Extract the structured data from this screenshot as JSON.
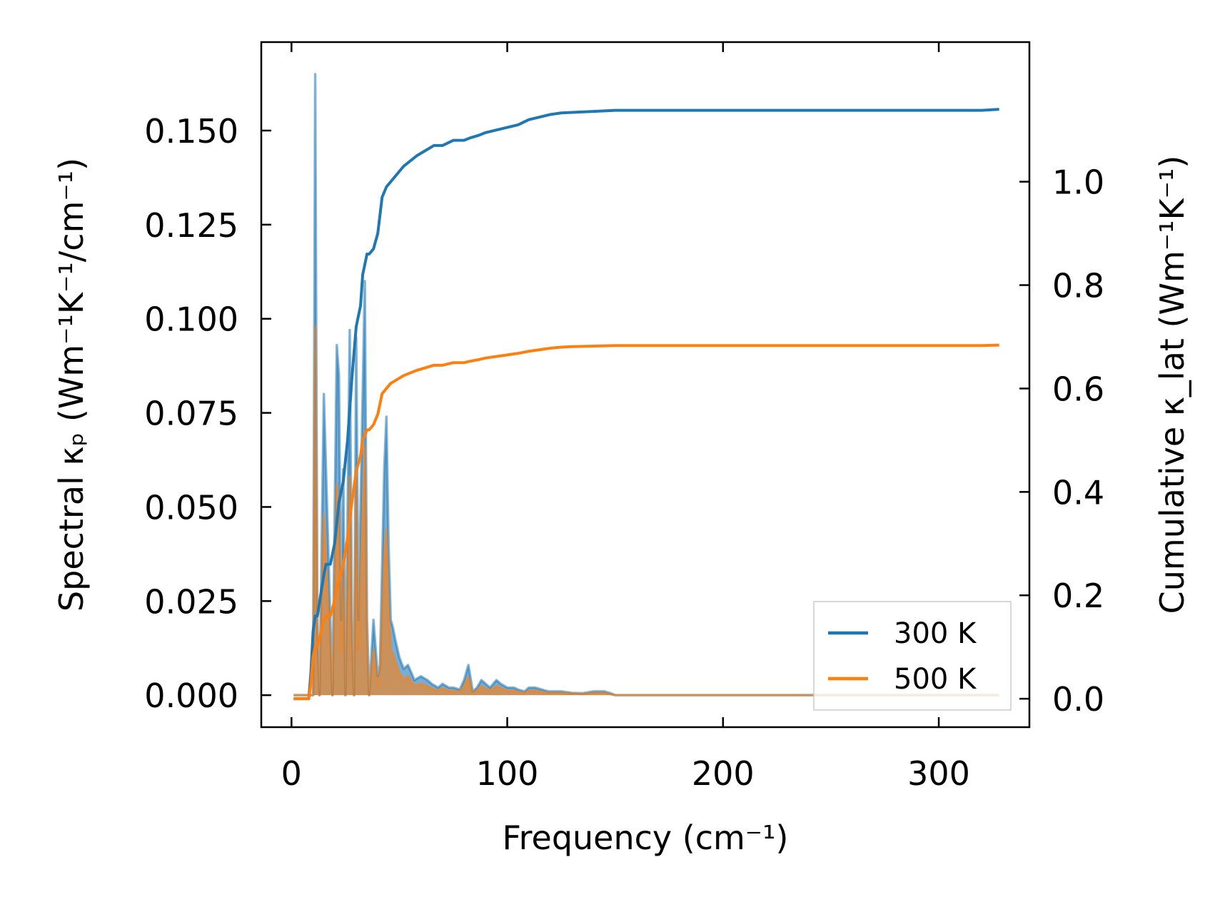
{
  "chart_data": {
    "type": "line",
    "xlabel": "Frequency (cm⁻¹)",
    "ylabel_left": "Spectral κₚ (Wm⁻¹K⁻¹/cm⁻¹)",
    "ylabel_right": "Cumulative κ_lat (Wm⁻¹K⁻¹)",
    "xlim": [
      -14,
      342
    ],
    "ylim_left": [
      -0.0085,
      0.1735
    ],
    "ylim_right": [
      -0.055,
      1.27
    ],
    "x_ticks": [
      0,
      100,
      200,
      300
    ],
    "x_tick_labels": [
      "0",
      "100",
      "200",
      "300"
    ],
    "y_left_ticks": [
      0.0,
      0.025,
      0.05,
      0.075,
      0.1,
      0.125,
      0.15
    ],
    "y_left_tick_labels": [
      "0.000",
      "0.025",
      "0.050",
      "0.075",
      "0.100",
      "0.125",
      "0.150"
    ],
    "y_right_ticks": [
      0.0,
      0.2,
      0.4,
      0.6,
      0.8,
      1.0
    ],
    "y_right_tick_labels": [
      "0.0",
      "0.2",
      "0.4",
      "0.6",
      "0.8",
      "1.0"
    ],
    "legend": {
      "location": "lower right",
      "entries": [
        {
          "label": "300 K",
          "color": "#1f77b4"
        },
        {
          "label": "500 K",
          "color": "#ff7f0e"
        }
      ]
    },
    "series": [
      {
        "name": "300 K",
        "color": "#1f77b4",
        "spectral": {
          "x": [
            1,
            6,
            8,
            10,
            11,
            12,
            13,
            15,
            17,
            19,
            21,
            22,
            23,
            24,
            25,
            27,
            28,
            29,
            30,
            31,
            33,
            34,
            35,
            36,
            38,
            40,
            41,
            43,
            44,
            45,
            46,
            47,
            48,
            50,
            52,
            54,
            57,
            60,
            63,
            65,
            68,
            70,
            73,
            75,
            78,
            80,
            82,
            84,
            86,
            88,
            90,
            92,
            95,
            97,
            100,
            103,
            105,
            108,
            110,
            113,
            116,
            119,
            122,
            125,
            130,
            135,
            140,
            145,
            148,
            150,
            153,
            160,
            200,
            250,
            300,
            320,
            325,
            328
          ],
          "y": [
            0.0,
            0.0,
            0.0,
            0.0,
            0.165,
            0.02,
            0.0,
            0.08,
            0.04,
            0.0,
            0.093,
            0.085,
            0.02,
            0.06,
            0.0,
            0.097,
            0.02,
            0.0,
            0.095,
            0.02,
            0.08,
            0.11,
            0.02,
            0.0,
            0.02,
            0.005,
            0.008,
            0.06,
            0.074,
            0.04,
            0.02,
            0.018,
            0.015,
            0.01,
            0.007,
            0.008,
            0.004,
            0.005,
            0.004,
            0.003,
            0.002,
            0.003,
            0.002,
            0.002,
            0.0015,
            0.004,
            0.008,
            0.001,
            0.002,
            0.004,
            0.003,
            0.002,
            0.004,
            0.003,
            0.002,
            0.002,
            0.0015,
            0.001,
            0.002,
            0.002,
            0.0015,
            0.001,
            0.001,
            0.001,
            0.0006,
            0.0005,
            0.001,
            0.001,
            0.0005,
            0.0,
            0.0,
            0.0,
            0.0,
            0.0,
            0.0,
            0.0,
            0.0,
            0.0
          ]
        },
        "cumulative": {
          "x": [
            1,
            6,
            8,
            9,
            10,
            11,
            12,
            15,
            16,
            18,
            20,
            22,
            24,
            26,
            28,
            30,
            32,
            33,
            35,
            36,
            38,
            40,
            42,
            44,
            46,
            48,
            50,
            52,
            55,
            58,
            62,
            66,
            70,
            75,
            80,
            83,
            87,
            90,
            95,
            100,
            105,
            110,
            115,
            120,
            125,
            130,
            140,
            150,
            200,
            300,
            320,
            328
          ],
          "y": [
            0.0,
            0.0,
            0.0,
            0.05,
            0.13,
            0.16,
            0.16,
            0.24,
            0.26,
            0.26,
            0.3,
            0.38,
            0.42,
            0.5,
            0.62,
            0.72,
            0.76,
            0.82,
            0.86,
            0.86,
            0.87,
            0.9,
            0.97,
            0.99,
            1.0,
            1.01,
            1.02,
            1.03,
            1.04,
            1.05,
            1.06,
            1.07,
            1.07,
            1.08,
            1.08,
            1.085,
            1.09,
            1.095,
            1.1,
            1.105,
            1.11,
            1.12,
            1.125,
            1.13,
            1.133,
            1.134,
            1.136,
            1.138,
            1.138,
            1.138,
            1.138,
            1.14
          ]
        }
      },
      {
        "name": "500 K",
        "color": "#ff7f0e",
        "spectral": {
          "x": [
            1,
            6,
            8,
            10,
            11,
            12,
            13,
            15,
            17,
            19,
            21,
            22,
            23,
            24,
            25,
            27,
            28,
            29,
            30,
            31,
            33,
            34,
            35,
            36,
            38,
            40,
            41,
            43,
            44,
            45,
            46,
            47,
            48,
            50,
            52,
            54,
            57,
            60,
            63,
            65,
            68,
            70,
            73,
            75,
            78,
            80,
            82,
            84,
            86,
            88,
            90,
            92,
            95,
            97,
            100,
            103,
            105,
            108,
            110,
            113,
            116,
            119,
            122,
            125,
            130,
            135,
            140,
            145,
            150,
            153,
            160,
            200,
            250,
            300,
            320,
            325,
            328
          ],
          "y": [
            0.0,
            0.0,
            0.0,
            0.0,
            0.098,
            0.012,
            0.0,
            0.048,
            0.024,
            0.0,
            0.056,
            0.051,
            0.012,
            0.036,
            0.0,
            0.058,
            0.012,
            0.0,
            0.057,
            0.012,
            0.048,
            0.066,
            0.012,
            0.0,
            0.012,
            0.003,
            0.005,
            0.036,
            0.044,
            0.024,
            0.012,
            0.011,
            0.009,
            0.006,
            0.004,
            0.005,
            0.0024,
            0.003,
            0.0024,
            0.0018,
            0.0012,
            0.0018,
            0.0012,
            0.0012,
            0.0009,
            0.0024,
            0.0048,
            0.0006,
            0.0012,
            0.0024,
            0.0018,
            0.0012,
            0.0024,
            0.0018,
            0.0012,
            0.0012,
            0.0009,
            0.0006,
            0.0012,
            0.0012,
            0.0009,
            0.0006,
            0.0006,
            0.0006,
            0.0004,
            0.0003,
            0.0006,
            0.0006,
            0.0,
            0.0,
            0.0,
            0.0,
            0.0,
            0.0,
            0.0,
            0.0,
            0.0
          ]
        },
        "cumulative": {
          "x": [
            1,
            6,
            8,
            9,
            10,
            11,
            12,
            15,
            16,
            18,
            20,
            22,
            24,
            26,
            28,
            30,
            32,
            33,
            35,
            36,
            38,
            40,
            42,
            44,
            46,
            48,
            50,
            52,
            55,
            58,
            62,
            66,
            70,
            75,
            80,
            83,
            87,
            90,
            95,
            100,
            105,
            110,
            115,
            120,
            125,
            130,
            140,
            150,
            200,
            300,
            320,
            328
          ],
          "y": [
            0.0,
            0.0,
            0.0,
            0.03,
            0.08,
            0.1,
            0.1,
            0.15,
            0.16,
            0.16,
            0.19,
            0.23,
            0.26,
            0.31,
            0.38,
            0.44,
            0.47,
            0.5,
            0.52,
            0.52,
            0.53,
            0.55,
            0.59,
            0.6,
            0.61,
            0.615,
            0.62,
            0.625,
            0.63,
            0.635,
            0.64,
            0.645,
            0.645,
            0.65,
            0.65,
            0.653,
            0.656,
            0.659,
            0.662,
            0.665,
            0.668,
            0.672,
            0.675,
            0.678,
            0.68,
            0.681,
            0.682,
            0.683,
            0.683,
            0.683,
            0.683,
            0.684
          ]
        }
      }
    ]
  }
}
